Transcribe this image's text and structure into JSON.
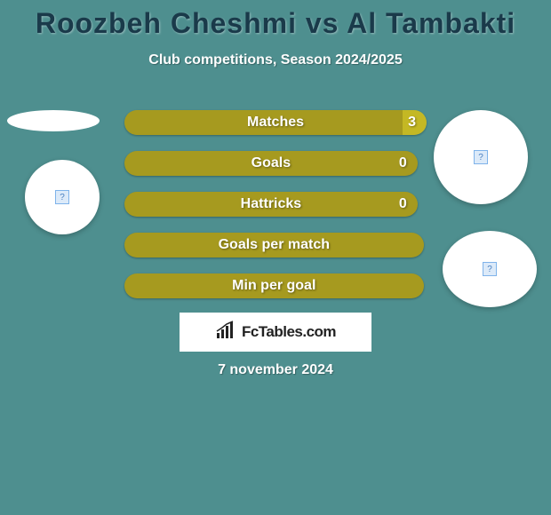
{
  "background_color": "#4e8f8f",
  "title": {
    "text": "Roozbeh Cheshmi vs Al Tambakti",
    "color": "#1a3a4a",
    "fontsize": 32
  },
  "subtitle": {
    "text": "Club competitions, Season 2024/2025",
    "color": "#ffffff",
    "fontsize": 16
  },
  "stats": [
    {
      "label": "Matches",
      "value": "3",
      "width_pct": 100
    },
    {
      "label": "Goals",
      "value": "0",
      "width_pct": 97
    },
    {
      "label": "Hattricks",
      "value": "0",
      "width_pct": 97
    },
    {
      "label": "Goals per match",
      "value": "",
      "width_pct": 99
    },
    {
      "label": "Min per goal",
      "value": "",
      "width_pct": 99
    }
  ],
  "bar_style": {
    "fill_color": "#a69a1f",
    "highlight_color": "#c4b824",
    "label_color": "#ffffff",
    "height": 28,
    "radius": 14,
    "gap": 18
  },
  "circles": {
    "badge_icon": "?",
    "badge_border": "#7fb3ea",
    "badge_bg": "#dceaf9"
  },
  "logo": {
    "text": "FcTables.com",
    "text_color": "#222222"
  },
  "date": "7 november 2024"
}
